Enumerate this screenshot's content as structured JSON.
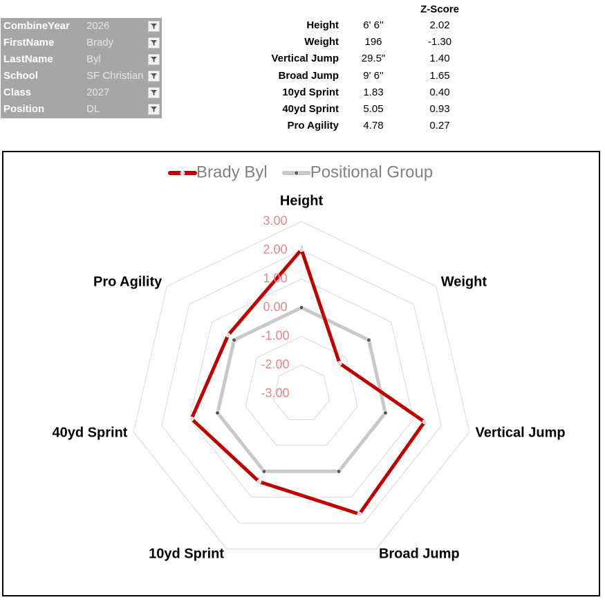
{
  "filters": [
    {
      "label": "CombineYear",
      "value": "2026"
    },
    {
      "label": "FirstName",
      "value": "Brady"
    },
    {
      "label": "LastName",
      "value": "Byl"
    },
    {
      "label": "School",
      "value": "SF Christian"
    },
    {
      "label": "Class",
      "value": "2027"
    },
    {
      "label": "Position",
      "value": "DL"
    }
  ],
  "table": {
    "header": "Z-Score",
    "rows": [
      [
        "Height",
        "6' 6''",
        "2.02"
      ],
      [
        "Weight",
        "196",
        "-1.30"
      ],
      [
        "Vertical Jump",
        "29.5\"",
        "1.40"
      ],
      [
        "Broad Jump",
        "9' 6''",
        "1.65"
      ],
      [
        "10yd Sprint",
        "1.83",
        "0.40"
      ],
      [
        "40yd Sprint",
        "5.05",
        "0.93"
      ],
      [
        "Pro Agility",
        "4.78",
        "0.27"
      ]
    ]
  },
  "chart_data": {
    "type": "radar",
    "categories": [
      "Height",
      "Weight",
      "Vertical Jump",
      "Broad Jump",
      "10yd Sprint",
      "40yd Sprint",
      "Pro Agility"
    ],
    "series": [
      {
        "name": "Brady Byl",
        "color": "#c00000",
        "values": [
          2.02,
          -1.3,
          1.4,
          1.65,
          0.4,
          0.93,
          0.27
        ]
      },
      {
        "name": "Positional Group",
        "color": "#c8c8c8",
        "values": [
          0,
          0,
          0,
          0,
          0,
          0,
          0
        ]
      }
    ],
    "ylim": [
      -3,
      3
    ],
    "yticks": [
      {
        "value": 3,
        "label": "3.00"
      },
      {
        "value": 2,
        "label": "2.00"
      },
      {
        "value": 1,
        "label": "1.00"
      },
      {
        "value": 0,
        "label": "0.00"
      },
      {
        "value": -1,
        "label": "-1.00"
      },
      {
        "value": -2,
        "label": "-2.00"
      },
      {
        "value": -3,
        "label": "-3.00"
      }
    ],
    "grid": true,
    "legend": "top"
  }
}
